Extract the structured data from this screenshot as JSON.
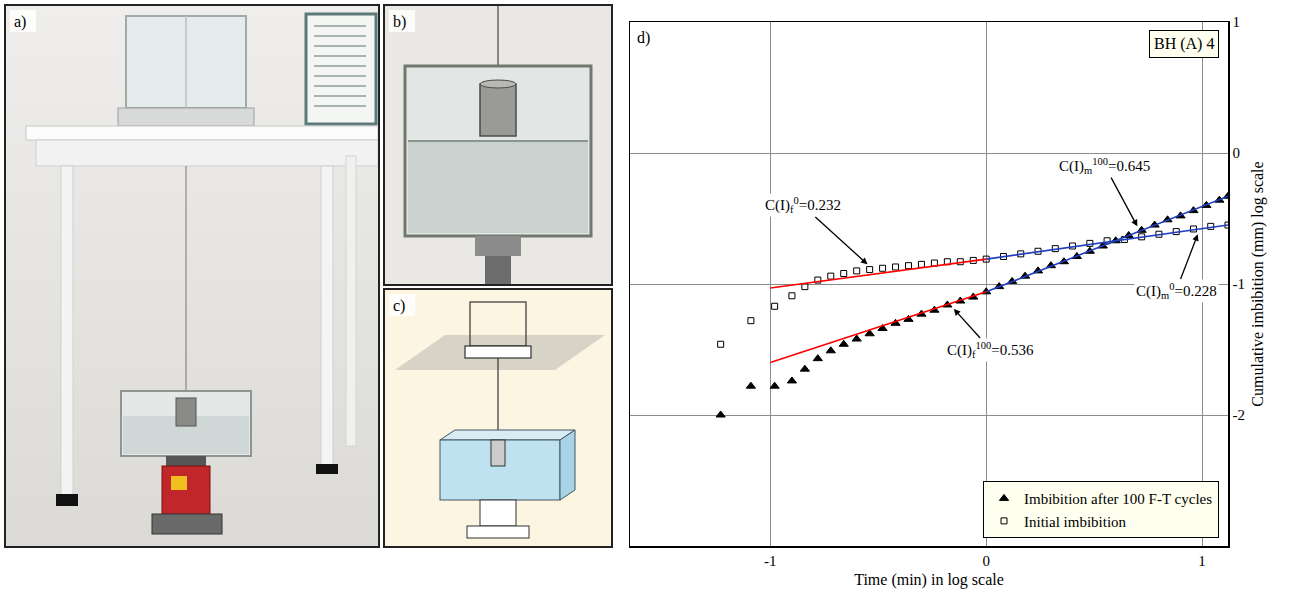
{
  "panels": [
    {
      "letter": "a)"
    },
    {
      "letter": "b)"
    },
    {
      "letter": "c)"
    }
  ],
  "chart_data": {
    "type": "scatter",
    "panel_letter": "d)",
    "title": "BH (A) 4",
    "x_label": "Time (min) in log scale",
    "y_label": "Cumulative imbibition (mm) log scale",
    "xlim": [
      -1.65,
      1.12
    ],
    "xticks": [
      -1,
      0,
      1
    ],
    "ylim": [
      -3,
      1
    ],
    "yticks": [
      -2,
      -1,
      0,
      1
    ],
    "grid": true,
    "legend": "bottom right",
    "series": [
      {
        "name": "Imbibition after 100 F-T cycles",
        "type": "scatter",
        "marker": "triangle",
        "color": "#000000",
        "x": [
          -1.23,
          -1.09,
          -0.98,
          -0.9,
          -0.84,
          -0.78,
          -0.72,
          -0.66,
          -0.6,
          -0.54,
          -0.48,
          -0.42,
          -0.36,
          -0.3,
          -0.24,
          -0.18,
          -0.12,
          -0.06,
          0.0,
          0.06,
          0.12,
          0.18,
          0.24,
          0.3,
          0.36,
          0.42,
          0.48,
          0.54,
          0.6,
          0.66,
          0.72,
          0.78,
          0.84,
          0.9,
          0.96,
          1.02,
          1.08,
          1.12
        ],
        "values": [
          -2.0,
          -1.78,
          -1.78,
          -1.74,
          -1.65,
          -1.57,
          -1.51,
          -1.46,
          -1.42,
          -1.38,
          -1.34,
          -1.3,
          -1.27,
          -1.23,
          -1.2,
          -1.16,
          -1.13,
          -1.1,
          -1.06,
          -1.02,
          -0.98,
          -0.94,
          -0.9,
          -0.86,
          -0.83,
          -0.79,
          -0.75,
          -0.71,
          -0.67,
          -0.63,
          -0.59,
          -0.55,
          -0.51,
          -0.48,
          -0.44,
          -0.4,
          -0.36,
          -0.33
        ]
      },
      {
        "name": "Initial imbibition",
        "type": "scatter",
        "marker": "square-open",
        "color": "#000000",
        "x": [
          -1.23,
          -1.09,
          -0.98,
          -0.9,
          -0.84,
          -0.78,
          -0.72,
          -0.66,
          -0.6,
          -0.54,
          -0.48,
          -0.42,
          -0.36,
          -0.3,
          -0.24,
          -0.18,
          -0.12,
          -0.06,
          0.0,
          0.08,
          0.16,
          0.24,
          0.32,
          0.4,
          0.48,
          0.56,
          0.64,
          0.72,
          0.8,
          0.88,
          0.96,
          1.04,
          1.12
        ],
        "values": [
          -1.46,
          -1.28,
          -1.17,
          -1.09,
          -1.02,
          -0.97,
          -0.94,
          -0.92,
          -0.9,
          -0.89,
          -0.88,
          -0.87,
          -0.86,
          -0.85,
          -0.84,
          -0.83,
          -0.83,
          -0.82,
          -0.81,
          -0.79,
          -0.77,
          -0.75,
          -0.73,
          -0.71,
          -0.69,
          -0.67,
          -0.66,
          -0.64,
          -0.62,
          -0.6,
          -0.58,
          -0.56,
          -0.55
        ]
      },
      {
        "type": "line",
        "color": "#ff0000",
        "x": [
          -1.0,
          0.0
        ],
        "values": [
          -1.03,
          -0.81
        ]
      },
      {
        "type": "line",
        "color": "#1f3fbf",
        "x": [
          0.0,
          1.12
        ],
        "values": [
          -0.81,
          -0.55
        ]
      },
      {
        "type": "line",
        "color": "#ff0000",
        "x": [
          -1.0,
          0.0
        ],
        "values": [
          -1.6,
          -1.06
        ]
      },
      {
        "type": "line",
        "color": "#1f3fbf",
        "x": [
          0.0,
          1.12
        ],
        "values": [
          -1.06,
          -0.33
        ]
      }
    ],
    "annotations": [
      {
        "text": "C(I)",
        "sub": "f",
        "sup": "0",
        "relation": "=",
        "value": 0.232,
        "x": -0.55,
        "y": -0.85,
        "text_x": -0.85,
        "text_y": -0.4
      },
      {
        "text": "C(I)",
        "sub": "m",
        "sup": "100",
        "relation": "=",
        "value": 0.645,
        "x": 0.7,
        "y": -0.56,
        "text_x": 0.55,
        "text_y": -0.1
      },
      {
        "text": "C(I)",
        "sub": "f",
        "sup": "100",
        "relation": "=",
        "value": 0.536,
        "x": -0.15,
        "y": -1.19,
        "text_x": 0.02,
        "text_y": -1.5
      },
      {
        "text": "C(I)",
        "sub": "m",
        "sup": "0",
        "relation": "=",
        "value": 0.228,
        "x": 0.98,
        "y": -0.62,
        "text_x": 0.88,
        "text_y": -1.05
      }
    ]
  }
}
